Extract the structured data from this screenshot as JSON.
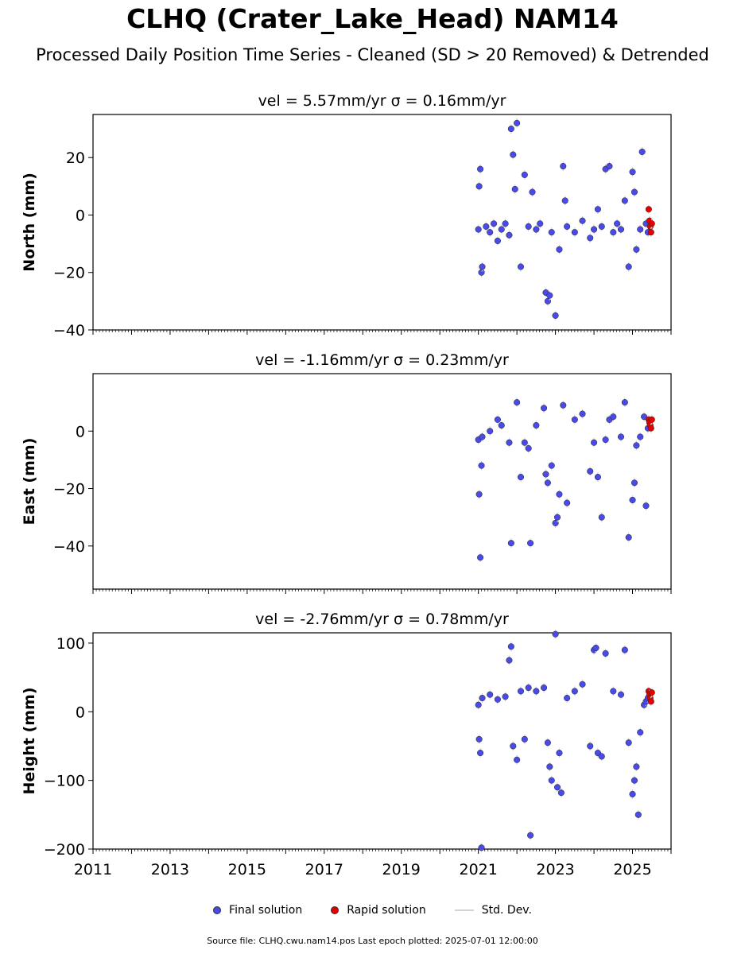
{
  "header": {
    "title": "CLHQ (Crater_Lake_Head) NAM14",
    "subtitle": "Processed Daily Position Time Series - Cleaned (SD > 20 Removed) & Detrended"
  },
  "legend": {
    "final": "Final solution",
    "rapid": "Rapid solution",
    "std": "Std. Dev."
  },
  "footer": {
    "text": "Source file: CLHQ.cwu.nam14.pos  Last epoch plotted: 2025-07-01 12:00:00"
  },
  "colors": {
    "final": "#4a4ae8",
    "rapid": "#e60000",
    "std": "#d3d3d3"
  },
  "chart_data": [
    {
      "type": "scatter",
      "title": "vel = 5.57mm/yr   σ = 0.16mm/yr",
      "ylabel": "North (mm)",
      "xlim": [
        2011,
        2026
      ],
      "ylim": [
        -40,
        35
      ],
      "yticks": [
        -40,
        -20,
        0,
        20
      ],
      "series": [
        {
          "name": "Final solution",
          "x": [
            2021.0,
            2021.02,
            2021.05,
            2021.08,
            2021.1,
            2021.2,
            2021.3,
            2021.4,
            2021.5,
            2021.6,
            2021.7,
            2021.8,
            2021.85,
            2021.9,
            2021.95,
            2022.0,
            2022.1,
            2022.2,
            2022.3,
            2022.4,
            2022.5,
            2022.6,
            2022.75,
            2022.8,
            2022.85,
            2022.9,
            2023.0,
            2023.1,
            2023.2,
            2023.25,
            2023.3,
            2023.5,
            2023.7,
            2023.9,
            2024.0,
            2024.1,
            2024.2,
            2024.3,
            2024.4,
            2024.5,
            2024.6,
            2024.7,
            2024.8,
            2024.9,
            2025.0,
            2025.05,
            2025.1,
            2025.2,
            2025.25,
            2025.35,
            2025.4
          ],
          "y": [
            -5,
            10,
            16,
            -20,
            -18,
            -4,
            -6,
            -3,
            -9,
            -5,
            -3,
            -7,
            30,
            21,
            9,
            32,
            -18,
            14,
            -4,
            8,
            -5,
            -3,
            -27,
            -30,
            -28,
            -6,
            -35,
            -12,
            17,
            5,
            -4,
            -6,
            -2,
            -8,
            -5,
            2,
            -4,
            16,
            17,
            -6,
            -3,
            -5,
            5,
            -18,
            15,
            8,
            -12,
            -5,
            22,
            -3,
            -6
          ]
        },
        {
          "name": "Rapid solution",
          "x": [
            2025.42,
            2025.44,
            2025.46,
            2025.48,
            2025.5
          ],
          "y": [
            2,
            -2,
            -4,
            -6,
            -3
          ]
        }
      ]
    },
    {
      "type": "scatter",
      "title": "vel = -1.16mm/yr   σ = 0.23mm/yr",
      "ylabel": "East (mm)",
      "xlim": [
        2011,
        2026
      ],
      "ylim": [
        -55,
        20
      ],
      "yticks": [
        -40,
        -20,
        0
      ],
      "series": [
        {
          "name": "Final solution",
          "x": [
            2021.0,
            2021.02,
            2021.05,
            2021.08,
            2021.1,
            2021.3,
            2021.5,
            2021.6,
            2021.8,
            2021.85,
            2022.0,
            2022.1,
            2022.2,
            2022.3,
            2022.35,
            2022.5,
            2022.7,
            2022.75,
            2022.8,
            2022.9,
            2023.0,
            2023.05,
            2023.1,
            2023.2,
            2023.3,
            2023.5,
            2023.7,
            2023.9,
            2024.0,
            2024.1,
            2024.2,
            2024.3,
            2024.4,
            2024.5,
            2024.7,
            2024.8,
            2024.9,
            2025.0,
            2025.05,
            2025.1,
            2025.2,
            2025.3,
            2025.35,
            2025.4
          ],
          "y": [
            -3,
            -22,
            -44,
            -12,
            -2,
            0,
            4,
            2,
            -4,
            -39,
            10,
            -16,
            -4,
            -6,
            -39,
            2,
            8,
            -15,
            -18,
            -12,
            -32,
            -30,
            -22,
            9,
            -25,
            4,
            6,
            -14,
            -4,
            -16,
            -30,
            -3,
            4,
            5,
            -2,
            10,
            -37,
            -24,
            -18,
            -5,
            -2,
            5,
            -26,
            1
          ]
        },
        {
          "name": "Rapid solution",
          "x": [
            2025.42,
            2025.44,
            2025.46,
            2025.48,
            2025.5
          ],
          "y": [
            4,
            3,
            2,
            1,
            4
          ]
        }
      ]
    },
    {
      "type": "scatter",
      "title": "vel = -2.76mm/yr   σ = 0.78mm/yr",
      "ylabel": "Height (mm)",
      "xlim": [
        2011,
        2026
      ],
      "ylim": [
        -200,
        115
      ],
      "yticks": [
        -200,
        -100,
        0,
        100
      ],
      "series": [
        {
          "name": "Final solution",
          "x": [
            2021.0,
            2021.02,
            2021.05,
            2021.08,
            2021.1,
            2021.3,
            2021.5,
            2021.7,
            2021.8,
            2021.85,
            2021.9,
            2022.0,
            2022.1,
            2022.2,
            2022.3,
            2022.35,
            2022.5,
            2022.7,
            2022.8,
            2022.85,
            2022.9,
            2023.0,
            2023.05,
            2023.1,
            2023.15,
            2023.3,
            2023.5,
            2023.7,
            2023.9,
            2024.0,
            2024.05,
            2024.1,
            2024.2,
            2024.3,
            2024.5,
            2024.7,
            2024.8,
            2024.9,
            2025.0,
            2025.05,
            2025.1,
            2025.15,
            2025.2,
            2025.3,
            2025.35,
            2025.4
          ],
          "y": [
            10,
            -40,
            -60,
            -198,
            20,
            25,
            18,
            22,
            75,
            95,
            -50,
            -70,
            30,
            -40,
            35,
            -180,
            30,
            35,
            -45,
            -80,
            -100,
            113,
            -110,
            -60,
            -118,
            20,
            30,
            40,
            -50,
            90,
            93,
            -60,
            -65,
            85,
            30,
            25,
            90,
            -45,
            -120,
            -100,
            -80,
            -150,
            -30,
            10,
            15,
            20
          ]
        },
        {
          "name": "Rapid solution",
          "x": [
            2025.42,
            2025.44,
            2025.46,
            2025.48,
            2025.5
          ],
          "y": [
            30,
            25,
            20,
            15,
            28
          ]
        }
      ]
    }
  ],
  "x_ticks": [
    "2011",
    "2013",
    "2015",
    "2017",
    "2019",
    "2021",
    "2023",
    "2025"
  ]
}
